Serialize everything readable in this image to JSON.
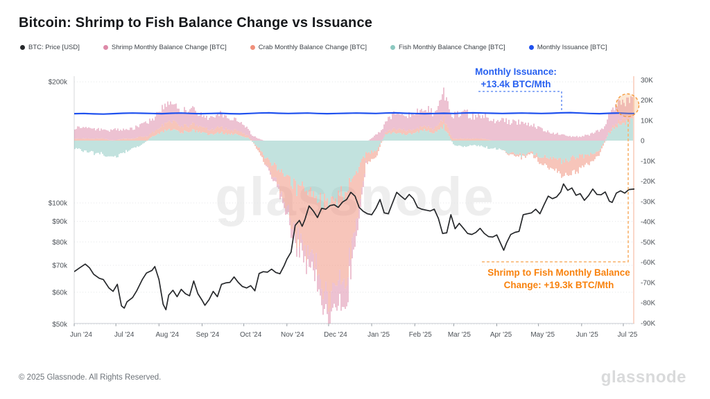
{
  "title": "Bitcoin: Shrimp to Fish Balance Change vs Issuance",
  "legend": [
    {
      "label": "BTC: Price [USD]",
      "color": "#26282b"
    },
    {
      "label": "Shrimp Monthly Balance Change [BTC]",
      "color": "#dd8aa8"
    },
    {
      "label": "Crab Monthly Balance Change [BTC]",
      "color": "#f0907b"
    },
    {
      "label": "Fish Monthly Balance Change [BTC]",
      "color": "#8cc8c0"
    },
    {
      "label": "Monthly Issuance [BTC]",
      "color": "#1f51ee"
    }
  ],
  "annotations": {
    "issuance_note": {
      "line1": "Monthly Issuance:",
      "line2": "+13.4k BTC/Mth",
      "color": "#2760f0"
    },
    "balance_note": {
      "line1": "Shrimp to Fish Monthly Balance",
      "line2": "Change: +19.3k BTC/Mth",
      "color": "#f8820e"
    }
  },
  "watermark": "glassnode",
  "footer": {
    "copyright": "© 2025 Glassnode. All Rights Reserved.",
    "logo": "glassnode"
  },
  "chart_data": {
    "type": "mixed",
    "subtypes": {
      "price": "line (log scale, left axis)",
      "issuance": "line (right axis)",
      "balance_changes": "stacked bars (right axis, stacked order from zero: fish, crab, shrimp)"
    },
    "left_axis": {
      "unit": "USD",
      "scale": "log",
      "tick_labels": [
        "$200k",
        "$100k",
        "$90k",
        "$80k",
        "$70k",
        "$60k",
        "$50k"
      ],
      "tick_values_k": [
        200,
        100,
        90,
        80,
        70,
        60,
        50
      ]
    },
    "right_axis": {
      "unit": "K BTC",
      "scale": "linear",
      "tick_labels": [
        "30K",
        "20K",
        "10K",
        "0",
        "-10K",
        "-20K",
        "-30K",
        "-40K",
        "-50K",
        "-60K",
        "-70K",
        "-80K",
        "-90K"
      ],
      "tick_values": [
        30,
        20,
        10,
        0,
        -10,
        -20,
        -30,
        -40,
        -50,
        -60,
        -70,
        -80,
        -90
      ]
    },
    "x_axis": {
      "start_date": "2024-06-01",
      "months": [
        {
          "label": "Jun '24",
          "tick_day": 0,
          "label_day": 5
        },
        {
          "label": "Jul '24",
          "tick_day": 30,
          "label_day": 36
        },
        {
          "label": "Aug '24",
          "tick_day": 61,
          "label_day": 67
        },
        {
          "label": "Sep '24",
          "tick_day": 92,
          "label_day": 96
        },
        {
          "label": "Oct '24",
          "tick_day": 122,
          "label_day": 127
        },
        {
          "label": "Nov '24",
          "tick_day": 153,
          "label_day": 157
        },
        {
          "label": "Dec '24",
          "tick_day": 183,
          "label_day": 188
        },
        {
          "label": "Jan '25",
          "tick_day": 214,
          "label_day": 219
        },
        {
          "label": "Feb '25",
          "tick_day": 245,
          "label_day": 249
        },
        {
          "label": "Mar '25",
          "tick_day": 273,
          "label_day": 277
        },
        {
          "label": "Apr '25",
          "tick_day": 304,
          "label_day": 307
        },
        {
          "label": "May '25",
          "tick_day": 334,
          "label_day": 337
        },
        {
          "label": "Jun '25",
          "tick_day": 365,
          "label_day": 369
        },
        {
          "label": "Jul '25",
          "tick_day": 395,
          "label_day": 398
        }
      ],
      "total_days": 403
    },
    "price_usd_k": {
      "points_day_value": [
        [
          0,
          67.5
        ],
        [
          4,
          69
        ],
        [
          8,
          70.5
        ],
        [
          11,
          69
        ],
        [
          14,
          66.5
        ],
        [
          18,
          65
        ],
        [
          21,
          64.5
        ],
        [
          25,
          61.5
        ],
        [
          28,
          60.3
        ],
        [
          31,
          62.8
        ],
        [
          34,
          55.5
        ],
        [
          36,
          54.8
        ],
        [
          38,
          56.8
        ],
        [
          42,
          58.2
        ],
        [
          45,
          60.5
        ],
        [
          49,
          64.5
        ],
        [
          52,
          67
        ],
        [
          56,
          68
        ],
        [
          58,
          69.5
        ],
        [
          61,
          64.5
        ],
        [
          64,
          56
        ],
        [
          66,
          54.3
        ],
        [
          68,
          59
        ],
        [
          71,
          60.7
        ],
        [
          74,
          58.5
        ],
        [
          77,
          61
        ],
        [
          80,
          59.5
        ],
        [
          83,
          58.8
        ],
        [
          86,
          64
        ],
        [
          89,
          59.5
        ],
        [
          92,
          57.3
        ],
        [
          94,
          55.7
        ],
        [
          97,
          57.5
        ],
        [
          100,
          60.3
        ],
        [
          103,
          58.5
        ],
        [
          106,
          62.8
        ],
        [
          109,
          63.3
        ],
        [
          112,
          63.5
        ],
        [
          115,
          65.5
        ],
        [
          118,
          63.5
        ],
        [
          121,
          62
        ],
        [
          124,
          61.5
        ],
        [
          127,
          62.3
        ],
        [
          130,
          60.5
        ],
        [
          133,
          66.8
        ],
        [
          136,
          67.5
        ],
        [
          139,
          67.3
        ],
        [
          142,
          68.5
        ],
        [
          145,
          67.2
        ],
        [
          148,
          66.7
        ],
        [
          151,
          69.8
        ],
        [
          153,
          72.5
        ],
        [
          156,
          75.5
        ],
        [
          159,
          88
        ],
        [
          162,
          90.5
        ],
        [
          164,
          87.5
        ],
        [
          166,
          91
        ],
        [
          169,
          98.3
        ],
        [
          172,
          95.5
        ],
        [
          175,
          92
        ],
        [
          178,
          97
        ],
        [
          181,
          96.5
        ],
        [
          184,
          98.5
        ],
        [
          187,
          99
        ],
        [
          190,
          97.5
        ],
        [
          193,
          100.5
        ],
        [
          196,
          102
        ],
        [
          199,
          106.3
        ],
        [
          202,
          104
        ],
        [
          205,
          97.5
        ],
        [
          208,
          95.3
        ],
        [
          211,
          94
        ],
        [
          214,
          93.5
        ],
        [
          217,
          97
        ],
        [
          220,
          102
        ],
        [
          223,
          94.5
        ],
        [
          226,
          94
        ],
        [
          229,
          100
        ],
        [
          232,
          106.3
        ],
        [
          235,
          104
        ],
        [
          238,
          102
        ],
        [
          241,
          105
        ],
        [
          244,
          102.5
        ],
        [
          247,
          97.5
        ],
        [
          250,
          96.5
        ],
        [
          253,
          96
        ],
        [
          256,
          95.5
        ],
        [
          259,
          96.5
        ],
        [
          262,
          91.5
        ],
        [
          265,
          84
        ],
        [
          268,
          84.3
        ],
        [
          271,
          93.5
        ],
        [
          274,
          86.3
        ],
        [
          277,
          89
        ],
        [
          280,
          86.5
        ],
        [
          283,
          84
        ],
        [
          286,
          83.5
        ],
        [
          289,
          84.5
        ],
        [
          292,
          86.5
        ],
        [
          295,
          84
        ],
        [
          298,
          82.5
        ],
        [
          301,
          82.3
        ],
        [
          304,
          83.3
        ],
        [
          307,
          79
        ],
        [
          309,
          76.3
        ],
        [
          311,
          79.5
        ],
        [
          314,
          83.5
        ],
        [
          317,
          84.5
        ],
        [
          320,
          85
        ],
        [
          323,
          93.5
        ],
        [
          326,
          94
        ],
        [
          329,
          94.5
        ],
        [
          332,
          96.5
        ],
        [
          335,
          94
        ],
        [
          338,
          99
        ],
        [
          341,
          104
        ],
        [
          344,
          102.5
        ],
        [
          347,
          103.5
        ],
        [
          350,
          106.5
        ],
        [
          352,
          111.5
        ],
        [
          355,
          107.5
        ],
        [
          358,
          109
        ],
        [
          361,
          104.5
        ],
        [
          364,
          105.5
        ],
        [
          367,
          101.5
        ],
        [
          370,
          104.3
        ],
        [
          373,
          108.3
        ],
        [
          376,
          105
        ],
        [
          379,
          104.8
        ],
        [
          382,
          106.5
        ],
        [
          385,
          101
        ],
        [
          387,
          100.3
        ],
        [
          390,
          105.8
        ],
        [
          393,
          107.2
        ],
        [
          396,
          105.8
        ],
        [
          399,
          108
        ],
        [
          403,
          108.3
        ]
      ]
    },
    "issuance_k_btc": {
      "sample_step_days": 7,
      "values": [
        13.3,
        13.4,
        13.2,
        13.1,
        13.3,
        13.5,
        13.6,
        13.5,
        13.4,
        13.3,
        13.5,
        13.6,
        13.4,
        13.3,
        13.4,
        13.5,
        13.3,
        13.2,
        13.4,
        13.6,
        13.7,
        13.5,
        13.4,
        13.5,
        13.6,
        13.4,
        13.3,
        13.4,
        13.5,
        13.6,
        13.5,
        13.4,
        13.6,
        13.7,
        13.5,
        13.4,
        13.3,
        13.4,
        13.5,
        13.4,
        13.6,
        13.7,
        13.6,
        13.5,
        13.4,
        13.5,
        13.6,
        13.5,
        13.4,
        13.5,
        13.7,
        13.8,
        13.6,
        13.4,
        13.3,
        13.5,
        13.6,
        13.4
      ],
      "latest_label": "+13.4k BTC/Mth"
    },
    "balance_change_k_btc": {
      "sample_step_days": 7,
      "series": [
        {
          "name": "Fish Monthly Balance Change [BTC]",
          "color": "#8cc8c0",
          "values": [
            -4,
            -5,
            -6,
            -7,
            -8,
            -6,
            -4,
            -2,
            2,
            4,
            6,
            4,
            5,
            4,
            3,
            4,
            3,
            3,
            1,
            -4,
            -10,
            -14,
            -20,
            -24,
            -25,
            -28,
            -30,
            -28,
            -25,
            -15,
            -6,
            -5,
            3,
            4,
            3,
            4,
            5,
            4,
            7,
            -2,
            -3,
            -2,
            -3,
            -4,
            -5,
            -6,
            -7,
            -6,
            -8,
            -9,
            -10,
            -9,
            -8,
            -7,
            -5,
            4,
            8,
            9.5
          ]
        },
        {
          "name": "Crab Monthly Balance Change [BTC]",
          "color": "#f0907b",
          "values": [
            1,
            1,
            1,
            1,
            0,
            1,
            1,
            2,
            2,
            3,
            4,
            3,
            3,
            3,
            2,
            3,
            2,
            2,
            1,
            -2,
            -4,
            -8,
            -16,
            -26,
            -30,
            -34,
            -44,
            -44,
            -40,
            -25,
            -5,
            -3,
            1,
            2,
            2,
            2,
            2,
            2,
            4,
            1,
            1,
            1,
            1,
            0,
            0,
            -1,
            -1,
            -1,
            -3,
            -5,
            -7,
            -8,
            -6,
            -4,
            -2,
            1,
            2,
            2.3
          ]
        },
        {
          "name": "Shrimp Monthly Balance Change [BTC]",
          "color": "#dd8aa8",
          "values": [
            5,
            6,
            5,
            4,
            5,
            5,
            5,
            6,
            7,
            8,
            9,
            7,
            8,
            6,
            6,
            7,
            6,
            5,
            3,
            1,
            -1,
            -2,
            -4,
            -5,
            -6,
            -8,
            -10,
            -12,
            -12,
            -8,
            -1,
            3,
            6,
            8,
            7,
            8,
            9,
            8,
            13,
            12,
            13,
            11,
            12,
            10,
            10,
            9,
            9,
            8,
            6,
            4,
            3,
            2,
            2,
            3,
            5,
            8,
            9,
            7.5
          ]
        }
      ],
      "latest_total_label": "+19.3k BTC/Mth"
    }
  }
}
